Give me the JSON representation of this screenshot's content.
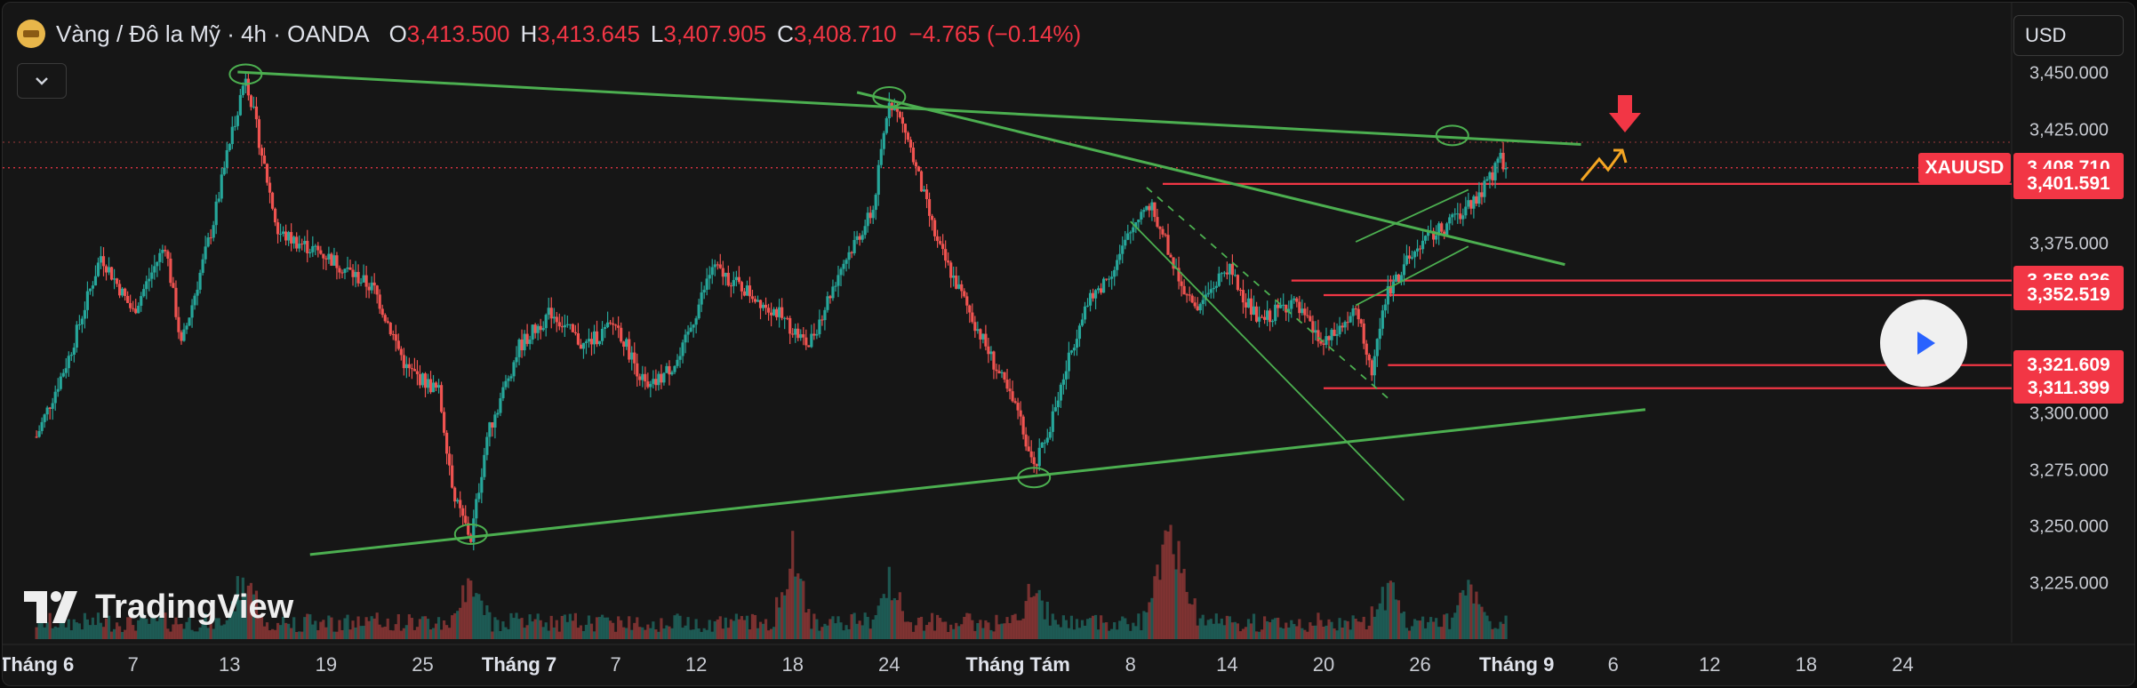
{
  "header": {
    "title": "Vàng / Đô la Mỹ · 4h · OANDA",
    "o_label": "O",
    "o_value": "3,413.500",
    "h_label": "H",
    "h_value": "3,413.645",
    "l_label": "L",
    "l_value": "3,407.905",
    "c_label": "C",
    "c_value": "3,408.710",
    "change": "−4.765 (−0.14%)"
  },
  "currency": "USD",
  "watermark": "TradingView",
  "colors": {
    "up": "#26a69a",
    "down": "#ef5350",
    "trend": "#4caf50",
    "alert": "#f23645",
    "arrow": "#f5a623"
  },
  "chart_data": {
    "type": "candlestick",
    "symbol_tag": "XAUUSD",
    "last_price": "3,408.710",
    "ylim": [
      3205,
      3460
    ],
    "y_ticks": [
      "3,450.000",
      "3,425.000",
      "3,375.000",
      "3,300.000",
      "3,275.000",
      "3,250.000",
      "3,225.000"
    ],
    "y_tick_values": [
      3450,
      3425,
      3375,
      3300,
      3275,
      3250,
      3225
    ],
    "x_ticks": [
      {
        "label": "Tháng 6",
        "strong": true,
        "x": 0
      },
      {
        "label": "7",
        "x": 6
      },
      {
        "label": "13",
        "x": 12
      },
      {
        "label": "19",
        "x": 18
      },
      {
        "label": "25",
        "x": 24
      },
      {
        "label": "Tháng 7",
        "strong": true,
        "x": 30
      },
      {
        "label": "7",
        "x": 36
      },
      {
        "label": "12",
        "x": 41
      },
      {
        "label": "18",
        "x": 47
      },
      {
        "label": "24",
        "x": 53
      },
      {
        "label": "Tháng Tám",
        "strong": true,
        "x": 61
      },
      {
        "label": "8",
        "x": 68
      },
      {
        "label": "14",
        "x": 74
      },
      {
        "label": "20",
        "x": 80
      },
      {
        "label": "26",
        "x": 86
      },
      {
        "label": "Tháng 9",
        "strong": true,
        "x": 92
      },
      {
        "label": "6",
        "x": 98
      },
      {
        "label": "12",
        "x": 104
      },
      {
        "label": "18",
        "x": 110
      },
      {
        "label": "24",
        "x": 116
      }
    ],
    "x_range": [
      -1,
      121
    ],
    "x_ticks_values_desc": "x = trading days since Jun 2 (approx)",
    "price_path": [
      [
        0,
        3290
      ],
      [
        2,
        3325
      ],
      [
        4,
        3370
      ],
      [
        6,
        3345
      ],
      [
        8,
        3375
      ],
      [
        9,
        3330
      ],
      [
        11,
        3385
      ],
      [
        12,
        3420
      ],
      [
        13,
        3450
      ],
      [
        15,
        3380
      ],
      [
        18,
        3370
      ],
      [
        21,
        3355
      ],
      [
        23,
        3320
      ],
      [
        25,
        3310
      ],
      [
        26,
        3262
      ],
      [
        27,
        3245
      ],
      [
        28,
        3290
      ],
      [
        30,
        3330
      ],
      [
        32,
        3345
      ],
      [
        34,
        3330
      ],
      [
        36,
        3340
      ],
      [
        38,
        3310
      ],
      [
        40,
        3325
      ],
      [
        42,
        3365
      ],
      [
        44,
        3355
      ],
      [
        46,
        3345
      ],
      [
        48,
        3330
      ],
      [
        50,
        3365
      ],
      [
        52,
        3390
      ],
      [
        53,
        3440
      ],
      [
        54,
        3425
      ],
      [
        56,
        3375
      ],
      [
        58,
        3345
      ],
      [
        60,
        3315
      ],
      [
        61,
        3300
      ],
      [
        62,
        3275
      ],
      [
        63,
        3295
      ],
      [
        64,
        3320
      ],
      [
        65,
        3345
      ],
      [
        67,
        3365
      ],
      [
        69,
        3395
      ],
      [
        70,
        3380
      ],
      [
        71,
        3360
      ],
      [
        72,
        3345
      ],
      [
        74,
        3365
      ],
      [
        76,
        3340
      ],
      [
        78,
        3350
      ],
      [
        80,
        3330
      ],
      [
        82,
        3345
      ],
      [
        83,
        3320
      ],
      [
        84,
        3355
      ],
      [
        86,
        3375
      ],
      [
        88,
        3385
      ],
      [
        90,
        3400
      ],
      [
        91,
        3412
      ],
      [
        91.5,
        3409
      ]
    ],
    "volume_spikes": [
      [
        13,
        0.6
      ],
      [
        27,
        0.5
      ],
      [
        47,
        0.85
      ],
      [
        53,
        0.55
      ],
      [
        62,
        0.45
      ],
      [
        70,
        1.0
      ],
      [
        71,
        0.8
      ],
      [
        84,
        0.5
      ],
      [
        89,
        0.45
      ]
    ],
    "levels": [
      {
        "price": 3401.591,
        "label": "3,401.591",
        "from_x": 70
      },
      {
        "price": 3358.936,
        "label": "3,358.936",
        "from_x": 78
      },
      {
        "price": 3352.519,
        "label": "3,352.519",
        "from_x": 80
      },
      {
        "price": 3321.609,
        "label": "3,321.609",
        "from_x": 84
      },
      {
        "price": 3311.399,
        "label": "3,311.399",
        "from_x": 80
      }
    ],
    "trendlines": [
      {
        "from": [
          12.5,
          3451
        ],
        "to": [
          96,
          3419
        ]
      },
      {
        "from": [
          51,
          3442
        ],
        "to": [
          95,
          3366
        ]
      },
      {
        "from": [
          17,
          3238
        ],
        "to": [
          100,
          3302
        ]
      },
      {
        "from": [
          68,
          3385
        ],
        "to": [
          85,
          3262
        ]
      },
      {
        "from": [
          69,
          3400
        ],
        "to": [
          84,
          3307
        ],
        "dashed": true
      },
      {
        "from": [
          82,
          3376
        ],
        "to": [
          89,
          3399
        ]
      },
      {
        "from": [
          82,
          3348
        ],
        "to": [
          89,
          3374
        ]
      }
    ],
    "circles": [
      [
        13,
        3450
      ],
      [
        27,
        3247
      ],
      [
        53,
        3440
      ],
      [
        62,
        3272
      ],
      [
        88,
        3423
      ]
    ]
  }
}
